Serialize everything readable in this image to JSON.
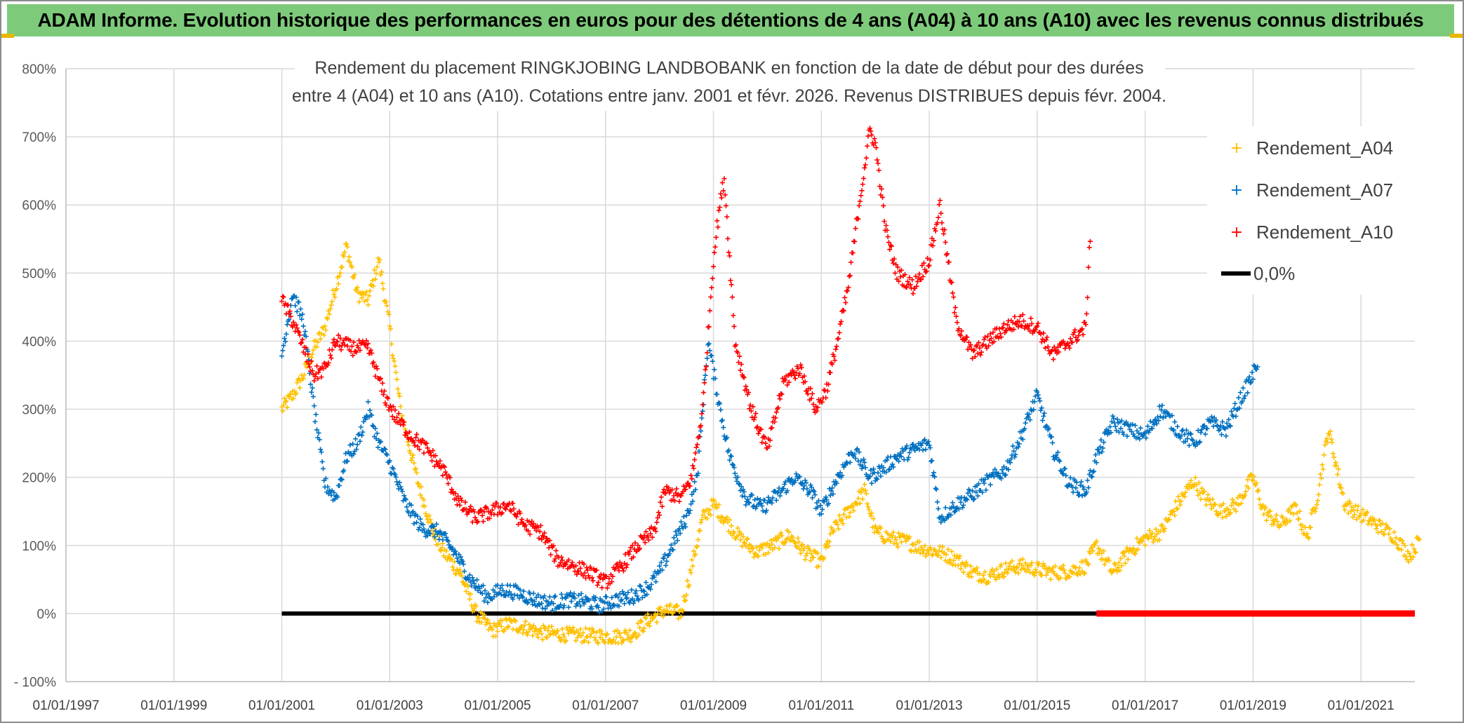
{
  "banner": {
    "title": "ADAM Informe. Evolution historique des performances en euros pour des détentions de 4 ans (A04) à 10 ans (A10) avec les revenus connus distribués"
  },
  "colors": {
    "banner_bg": "#7dcb7a",
    "a04": "#ffc000",
    "a07": "#0070c0",
    "a10": "#ff0000",
    "zero_line": "#000000",
    "grid": "#d9d9d9"
  },
  "chart_data": {
    "type": "scatter",
    "title_lines": [
      "Rendement du placement RINGKJOBING LANDBOBANK en fonction de la date de début pour des durées",
      "entre 4 (A04) et 10 ans (A10). Cotations entre janv. 2001 et févr. 2026. Revenus DISTRIBUES depuis févr. 2004."
    ],
    "xlabel": "",
    "ylabel": "",
    "xlim": [
      1997.0,
      2022.0
    ],
    "ylim": [
      -100,
      800
    ],
    "x_tick_labels": [
      "01/01/1997",
      "01/01/1999",
      "01/01/2001",
      "01/01/2003",
      "01/01/2005",
      "01/01/2007",
      "01/01/2009",
      "01/01/2011",
      "01/01/2013",
      "01/01/2015",
      "01/01/2017",
      "01/01/2019",
      "01/01/2021"
    ],
    "x_tick_values": [
      1997,
      1999,
      2001,
      2003,
      2005,
      2007,
      2009,
      2011,
      2013,
      2015,
      2017,
      2019,
      2021
    ],
    "y_tick_labels": [
      "- 100%",
      "0%",
      "100%",
      "200%",
      "300%",
      "400%",
      "500%",
      "600%",
      "700%",
      "800%"
    ],
    "y_tick_values": [
      -100,
      0,
      100,
      200,
      300,
      400,
      500,
      600,
      700,
      800
    ],
    "legend": {
      "position": "top-right",
      "entries": [
        "Rendement_A04",
        "Rendement_A07",
        "Rendement_A10",
        "0,0%"
      ]
    },
    "series": [
      {
        "name": "Rendement_A04",
        "x": [
          2001.0,
          2001.2,
          2001.4,
          2001.6,
          2001.8,
          2002.0,
          2002.2,
          2002.4,
          2002.6,
          2002.8,
          2003.0,
          2003.2,
          2003.5,
          2003.8,
          2004.0,
          2004.3,
          2004.6,
          2004.9,
          2005.2,
          2005.5,
          2005.8,
          2006.1,
          2006.5,
          2006.9,
          2007.2,
          2007.5,
          2007.8,
          2008.1,
          2008.4,
          2008.6,
          2008.8,
          2009.0,
          2009.2,
          2009.5,
          2009.8,
          2010.1,
          2010.4,
          2010.7,
          2011.0,
          2011.2,
          2011.5,
          2011.8,
          2012.0,
          2012.3,
          2012.6,
          2012.9,
          2013.2,
          2013.5,
          2013.8,
          2014.1,
          2014.4,
          2014.7,
          2015.0,
          2015.3,
          2015.6,
          2015.9,
          2016.1,
          2016.4,
          2016.7,
          2017.0,
          2017.3,
          2017.6,
          2017.9,
          2018.1,
          2018.4,
          2018.7,
          2019.0,
          2019.2,
          2019.5,
          2019.8,
          2020.0,
          2020.2,
          2020.4,
          2020.7,
          2021.0,
          2021.3,
          2021.6,
          2021.9,
          2022.1
        ],
        "values": [
          300,
          320,
          350,
          390,
          420,
          480,
          540,
          470,
          460,
          520,
          420,
          300,
          200,
          120,
          90,
          60,
          0,
          -25,
          -15,
          -20,
          -28,
          -30,
          -32,
          -33,
          -34,
          -30,
          -10,
          5,
          0,
          70,
          140,
          160,
          140,
          110,
          90,
          100,
          115,
          90,
          75,
          120,
          150,
          180,
          120,
          110,
          105,
          95,
          90,
          80,
          60,
          55,
          65,
          70,
          65,
          60,
          62,
          70,
          100,
          60,
          90,
          110,
          120,
          160,
          195,
          170,
          150,
          160,
          200,
          150,
          130,
          155,
          110,
          175,
          270,
          160,
          145,
          130,
          115,
          85,
          110
        ]
      },
      {
        "name": "Rendement_A07",
        "x": [
          2001.0,
          2001.2,
          2001.4,
          2001.6,
          2001.8,
          2002.0,
          2002.2,
          2002.4,
          2002.6,
          2002.8,
          2003.0,
          2003.3,
          2003.6,
          2003.9,
          2004.2,
          2004.5,
          2004.8,
          2005.1,
          2005.4,
          2005.7,
          2006.0,
          2006.3,
          2006.6,
          2006.9,
          2007.2,
          2007.5,
          2007.8,
          2008.0,
          2008.3,
          2008.5,
          2008.7,
          2008.9,
          2009.1,
          2009.3,
          2009.6,
          2009.9,
          2010.2,
          2010.5,
          2010.8,
          2011.0,
          2011.3,
          2011.6,
          2011.9,
          2012.1,
          2012.4,
          2012.7,
          2013.0,
          2013.2,
          2013.5,
          2013.8,
          2014.1,
          2014.4,
          2014.7,
          2015.0,
          2015.3,
          2015.6,
          2015.9,
          2016.1,
          2016.4,
          2016.7,
          2017.0,
          2017.3,
          2017.6,
          2017.9,
          2018.2,
          2018.5,
          2018.8,
          2019.0,
          2019.1
        ],
        "values": [
          380,
          470,
          430,
          300,
          190,
          170,
          230,
          250,
          300,
          250,
          220,
          160,
          125,
          120,
          90,
          50,
          25,
          35,
          30,
          20,
          15,
          20,
          18,
          12,
          20,
          25,
          40,
          60,
          110,
          140,
          200,
          400,
          310,
          230,
          170,
          155,
          175,
          200,
          180,
          150,
          200,
          240,
          200,
          210,
          230,
          240,
          250,
          140,
          160,
          175,
          195,
          210,
          260,
          320,
          240,
          190,
          180,
          230,
          280,
          270,
          260,
          300,
          270,
          250,
          280,
          270,
          320,
          350,
          375
        ]
      },
      {
        "name": "Rendement_A10",
        "x": [
          2001.0,
          2001.2,
          2001.4,
          2001.6,
          2001.8,
          2002.0,
          2002.3,
          2002.6,
          2002.9,
          2003.1,
          2003.4,
          2003.7,
          2004.0,
          2004.3,
          2004.6,
          2004.9,
          2005.2,
          2005.5,
          2005.8,
          2006.1,
          2006.4,
          2006.7,
          2007.0,
          2007.3,
          2007.6,
          2007.9,
          2008.1,
          2008.4,
          2008.6,
          2008.8,
          2009.0,
          2009.1,
          2009.2,
          2009.4,
          2009.7,
          2010.0,
          2010.3,
          2010.6,
          2010.9,
          2011.1,
          2011.3,
          2011.5,
          2011.7,
          2011.9,
          2012.0,
          2012.2,
          2012.4,
          2012.7,
          2013.0,
          2013.2,
          2013.5,
          2013.8,
          2014.1,
          2014.4,
          2014.7,
          2015.0,
          2015.3,
          2015.6,
          2015.9,
          2016.0
        ],
        "values": [
          460,
          430,
          390,
          350,
          360,
          400,
          390,
          390,
          320,
          290,
          260,
          240,
          210,
          160,
          140,
          150,
          160,
          130,
          120,
          80,
          70,
          60,
          45,
          70,
          100,
          120,
          180,
          170,
          200,
          300,
          520,
          590,
          640,
          400,
          300,
          240,
          340,
          360,
          300,
          330,
          400,
          480,
          600,
          710,
          690,
          560,
          500,
          480,
          520,
          600,
          430,
          380,
          400,
          420,
          430,
          420,
          380,
          400,
          420,
          580
        ]
      },
      {
        "name": "0,0%",
        "x": [
          2001.0,
          2022.0
        ],
        "values": [
          0,
          0
        ]
      }
    ]
  }
}
